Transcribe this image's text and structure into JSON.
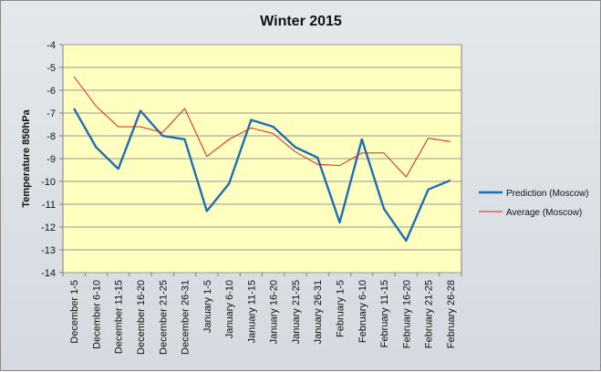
{
  "chart_data": {
    "type": "line",
    "title": "Winter 2015",
    "xlabel": "",
    "ylabel": "Temperature 850hPa",
    "ylim": [
      -14,
      -4
    ],
    "yticks": [
      -4,
      -5,
      -6,
      -7,
      -8,
      -9,
      -10,
      -11,
      -12,
      -13,
      -14
    ],
    "grid": true,
    "legend_position": "right",
    "categories": [
      "December 1-5",
      "December 6-10",
      "December 11-15",
      "December 16-20",
      "December 21-25",
      "December 26-31",
      "January 1-5",
      "January 6-10",
      "January 11-15",
      "January 16-20",
      "January 21-25",
      "January 26-31",
      "February 1-5",
      "February 6-10",
      "February 11-15",
      "February 16-20",
      "February 21-25",
      "February 26-28"
    ],
    "series": [
      {
        "name": "Prediction (Moscow)",
        "color": "#1f6db5",
        "values": [
          -6.8,
          -8.5,
          -9.45,
          -6.9,
          -8.0,
          -8.15,
          -11.3,
          -10.1,
          -7.3,
          -7.6,
          -8.5,
          -8.95,
          -11.8,
          -8.15,
          -11.2,
          -12.6,
          -10.35,
          -9.95
        ]
      },
      {
        "name": "Average (Moscow)",
        "color": "#e32020",
        "values": [
          -5.4,
          -6.7,
          -7.6,
          -7.6,
          -7.85,
          -6.8,
          -8.9,
          -8.15,
          -7.65,
          -7.9,
          -8.7,
          -9.25,
          -9.3,
          -8.75,
          -8.75,
          -9.8,
          -8.1,
          -8.25
        ]
      }
    ],
    "colors": {
      "plot_background": "#ffffc0",
      "frame_background": "#dde2e7",
      "grid": "#9a9a9a"
    }
  }
}
